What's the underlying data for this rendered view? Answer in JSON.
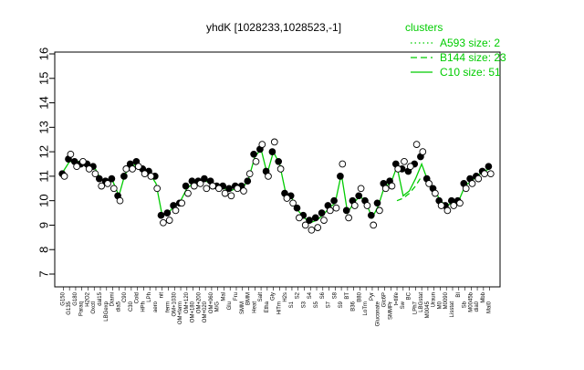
{
  "chart_data": {
    "type": "scatter",
    "title": "yhdK [1028233,1028523,-1]",
    "xlabel": "",
    "ylabel": "",
    "ylim": [
      7,
      16
    ],
    "yticks": [
      "7",
      "8",
      "9",
      "10",
      "11",
      "12",
      "13",
      "14",
      "15",
      "16"
    ],
    "grid": false,
    "legend_position": "top-right",
    "legend": {
      "title": "clusters",
      "entries": [
        {
          "label": "A593 size: 2",
          "style": "dotted"
        },
        {
          "label": "B144 size: 23",
          "style": "dashed"
        },
        {
          "label": "C10 size: 51",
          "style": "solid"
        }
      ]
    },
    "colors": {
      "line": "#00cc00",
      "filled_point": "#000000",
      "open_point": "#ffffff"
    },
    "x_tick_labels": [
      "G150",
      "G135",
      "G180",
      "Paraq",
      "H2O2",
      "Oxctl",
      "dal15",
      "LBGexp",
      "Diami",
      "dia5",
      "C90",
      "C30",
      "Cold",
      "HPh",
      "LPh",
      "aero",
      "nit",
      "ferm",
      "OM+1030",
      "OM+ferm",
      "OM+120",
      "OM+180",
      "OM+200",
      "OM+020",
      "OM+060",
      "M/G",
      "Mal",
      "Glu",
      "Fru",
      "SMM",
      "BMM",
      "Heat",
      "Salt",
      "Etha",
      "Gly",
      "HiTm",
      "H2s",
      "S1",
      "S2",
      "S3",
      "S4",
      "S5",
      "S6",
      "S7",
      "S8",
      "S9",
      "BT",
      "B36",
      "B80",
      "LoTm",
      "Pyr",
      "Gluconate",
      "Glc6P",
      "SMMPr",
      "t=tlife",
      "Sw",
      "BC",
      "LPh7",
      "LBGstat",
      "M0045",
      "Uraun",
      "M0",
      "M0090",
      "Lisstat",
      "BI",
      "Sb",
      "M0045b",
      "dia0",
      "Mbb",
      "Mal0"
    ],
    "series": [
      {
        "values": [
          11.1,
          11.7,
          11.6,
          11.5,
          11.5,
          11.4,
          10.9,
          10.8,
          10.9,
          10.2,
          11.0,
          11.5,
          11.6,
          11.3,
          11.2,
          11.0,
          9.4,
          9.5,
          9.8,
          9.9,
          10.6,
          10.8,
          10.8,
          10.9,
          10.8,
          10.6,
          10.6,
          10.5,
          10.6,
          10.6,
          10.8,
          11.9,
          12.1,
          11.2,
          12.0,
          11.6,
          10.3,
          10.2,
          9.7,
          9.4,
          9.2,
          9.3,
          9.5,
          9.8,
          10.0,
          11.0,
          9.6,
          10.0,
          10.2,
          10.0,
          9.4,
          9.9,
          10.7,
          10.8,
          11.5,
          11.3,
          11.2,
          11.5,
          11.8,
          10.9,
          10.5,
          10.0,
          9.8,
          10.0,
          10.0,
          10.7,
          10.9,
          11.0,
          11.2,
          11.4
        ],
        "filled": true
      },
      {
        "values": [
          11.0,
          11.9,
          11.4,
          11.6,
          11.3,
          11.1,
          10.6,
          10.7,
          10.5,
          10.0,
          11.3,
          11.3,
          11.4,
          11.1,
          11.0,
          10.5,
          9.1,
          9.2,
          9.6,
          9.9,
          10.3,
          10.6,
          10.7,
          10.5,
          10.6,
          10.5,
          10.3,
          10.2,
          10.5,
          10.4,
          11.1,
          11.6,
          12.3,
          11.0,
          12.4,
          11.3,
          10.1,
          9.9,
          9.3,
          9.0,
          8.8,
          8.9,
          9.2,
          9.6,
          9.7,
          11.5,
          9.3,
          9.8,
          10.5,
          9.8,
          9.0,
          9.6,
          10.5,
          10.6,
          11.3,
          11.6,
          11.4,
          12.3,
          12.0,
          10.7,
          10.3,
          9.8,
          9.6,
          9.8,
          9.9,
          10.5,
          10.7,
          10.9,
          11.1,
          11.1
        ],
        "filled": false
      }
    ],
    "cluster_line": {
      "label": "C10 size: 51",
      "values": [
        11.2,
        11.6,
        11.6,
        11.6,
        11.5,
        11.4,
        10.9,
        10.8,
        10.8,
        10.2,
        11.1,
        11.4,
        11.5,
        11.2,
        11.1,
        10.7,
        9.4,
        9.5,
        9.8,
        10.0,
        10.5,
        10.7,
        10.8,
        10.8,
        10.7,
        10.6,
        10.5,
        10.4,
        10.5,
        10.5,
        10.9,
        11.8,
        12.1,
        11.1,
        12.0,
        11.5,
        10.3,
        10.1,
        9.6,
        9.3,
        9.1,
        9.2,
        9.4,
        9.7,
        9.9,
        11.1,
        9.5,
        9.9,
        10.2,
        9.9,
        9.3,
        9.8,
        10.6,
        10.7,
        11.4,
        10.2,
        10.4,
        10.9,
        11.5,
        10.8,
        10.5,
        10.0,
        9.8,
        9.9,
        10.0,
        10.6,
        10.8,
        11.0,
        11.2,
        11.3
      ]
    },
    "b144_line": {
      "label": "B144 size: 23",
      "values": [
        null,
        null,
        null,
        null,
        null,
        null,
        null,
        null,
        null,
        null,
        null,
        null,
        null,
        null,
        null,
        null,
        null,
        null,
        null,
        null,
        null,
        null,
        null,
        null,
        null,
        null,
        null,
        null,
        null,
        null,
        null,
        null,
        null,
        null,
        null,
        null,
        null,
        null,
        null,
        null,
        null,
        null,
        null,
        null,
        null,
        null,
        null,
        null,
        null,
        null,
        null,
        null,
        null,
        null,
        10.0,
        10.1,
        10.3,
        10.6,
        11.0,
        null,
        null,
        null,
        null,
        null,
        null,
        null,
        null,
        null,
        null,
        null
      ]
    }
  }
}
